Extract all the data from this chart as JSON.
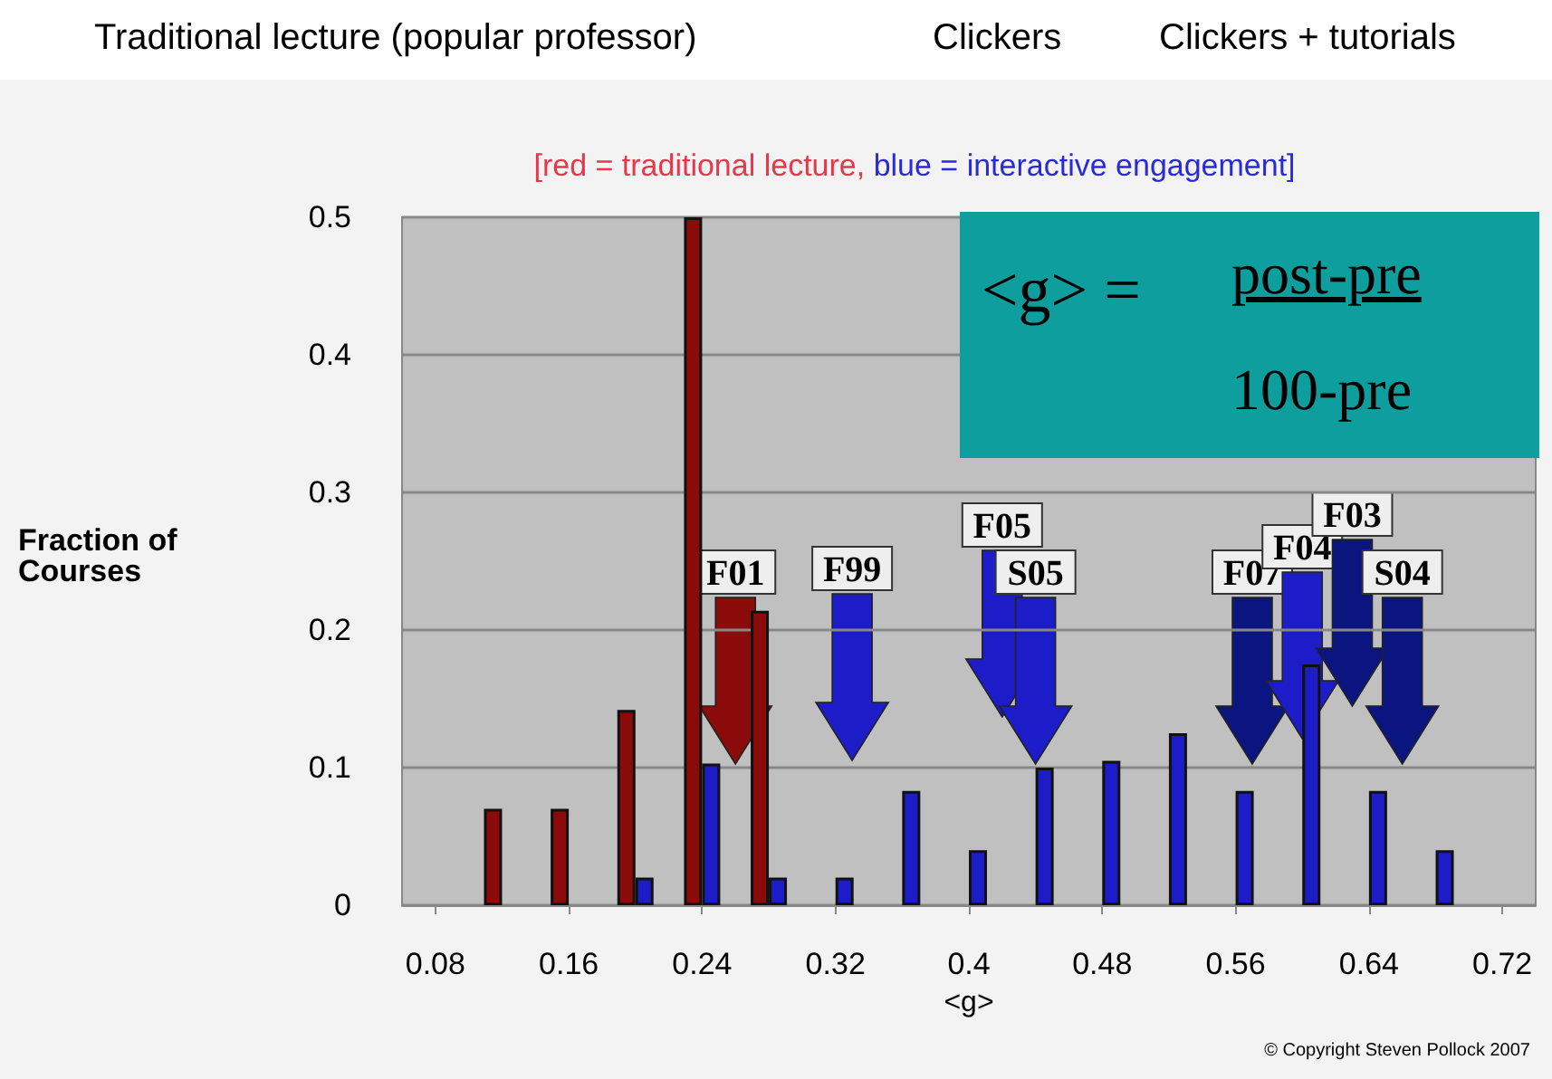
{
  "chart_data": {
    "type": "bar",
    "subtitle": "[red = traditional lecture, blue = interactive engagement]",
    "xlabel": "<g>",
    "ylabel": "Fraction of Courses",
    "xlim": [
      0.06,
      0.74
    ],
    "xticks": [
      0.08,
      0.16,
      0.24,
      0.32,
      0.4,
      0.48,
      0.56,
      0.64,
      0.72
    ],
    "ylim": [
      0,
      0.5
    ],
    "yticks": [
      0,
      0.1,
      0.2,
      0.3,
      0.4,
      0.5
    ],
    "grid": "y",
    "series": [
      {
        "color": "#8b0a0a",
        "x": [
          0.12,
          0.16,
          0.2,
          0.24,
          0.28
        ],
        "values": [
          0.07,
          0.07,
          0.142,
          0.5,
          0.214
        ]
      },
      {
        "color": "#1c1cc8",
        "x": [
          0.2,
          0.24,
          0.28,
          0.32,
          0.36,
          0.4,
          0.44,
          0.48,
          0.52,
          0.56,
          0.6,
          0.64,
          0.68
        ],
        "values": [
          0.02,
          0.103,
          0.02,
          0.02,
          0.083,
          0.04,
          0.1,
          0.105,
          0.125,
          0.083,
          0.175,
          0.083,
          0.04
        ]
      }
    ],
    "annotations": [
      "Traditional lecture (popular professor)",
      "Clickers",
      "Clickers + tutorials",
      "<g> =",
      "post-pre",
      "100-pre",
      {
        "text": "F01",
        "x": 0.26
      },
      {
        "text": "F99",
        "x": 0.33
      },
      {
        "text": "F05",
        "x": 0.42
      },
      {
        "text": "S05",
        "x": 0.44
      },
      {
        "text": "F07",
        "x": 0.57
      },
      {
        "text": "F04",
        "x": 0.6
      },
      {
        "text": "F03",
        "x": 0.63
      },
      {
        "text": "S04",
        "x": 0.66
      },
      "© Copyright Steven Pollock 2007"
    ]
  }
}
